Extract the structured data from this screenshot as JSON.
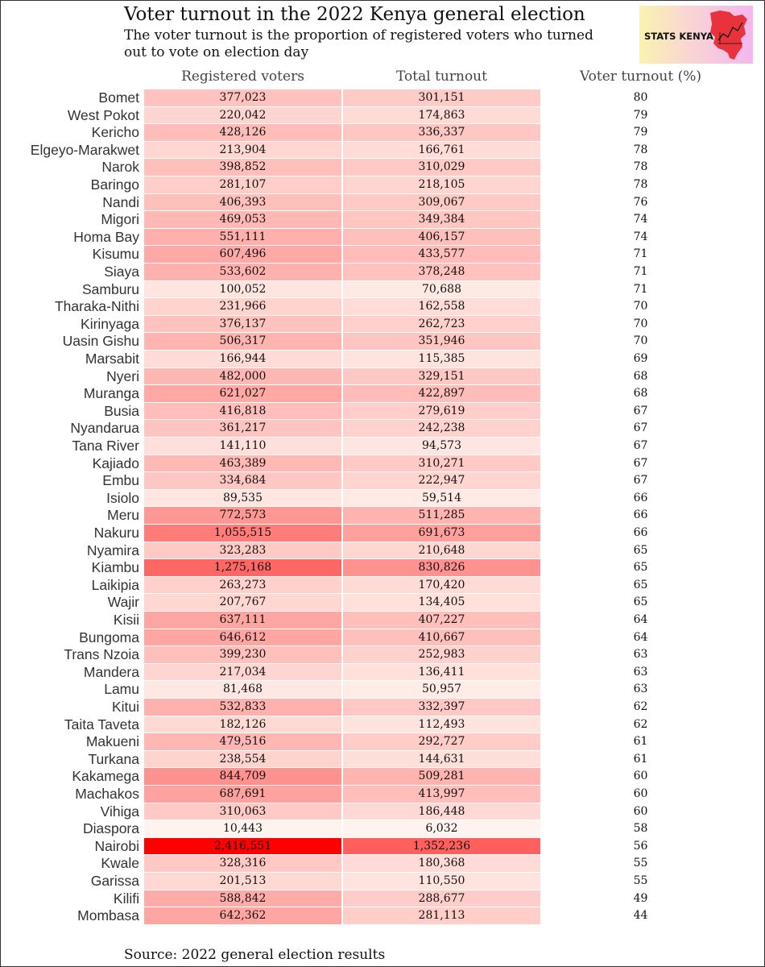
{
  "title": "Voter turnout in the 2022 Kenya general election",
  "subtitle": "The voter turnout is the proportion of registered voters who turned out to vote on election day",
  "logo_text": "STATS KENYA",
  "source": "Source: 2022 general election results",
  "colors": {
    "max": "#ff0000",
    "min": "#fff5f0",
    "logo_map": "#e8323c"
  },
  "chart_data": {
    "type": "table",
    "columns": [
      "Registered voters",
      "Total turnout",
      "Voter turnout (%)"
    ],
    "color_scale": "white-to-red by value, shared across Registered voters and Total turnout",
    "rows": [
      {
        "county": "Bomet",
        "registered": "377,023",
        "turnout": "301,151",
        "pct": "80"
      },
      {
        "county": "West Pokot",
        "registered": "220,042",
        "turnout": "174,863",
        "pct": "79"
      },
      {
        "county": "Kericho",
        "registered": "428,126",
        "turnout": "336,337",
        "pct": "79"
      },
      {
        "county": "Elgeyo-Marakwet",
        "registered": "213,904",
        "turnout": "166,761",
        "pct": "78"
      },
      {
        "county": "Narok",
        "registered": "398,852",
        "turnout": "310,029",
        "pct": "78"
      },
      {
        "county": "Baringo",
        "registered": "281,107",
        "turnout": "218,105",
        "pct": "78"
      },
      {
        "county": "Nandi",
        "registered": "406,393",
        "turnout": "309,067",
        "pct": "76"
      },
      {
        "county": "Migori",
        "registered": "469,053",
        "turnout": "349,384",
        "pct": "74"
      },
      {
        "county": "Homa Bay",
        "registered": "551,111",
        "turnout": "406,157",
        "pct": "74"
      },
      {
        "county": "Kisumu",
        "registered": "607,496",
        "turnout": "433,577",
        "pct": "71"
      },
      {
        "county": "Siaya",
        "registered": "533,602",
        "turnout": "378,248",
        "pct": "71"
      },
      {
        "county": "Samburu",
        "registered": "100,052",
        "turnout": "70,688",
        "pct": "71"
      },
      {
        "county": "Tharaka-Nithi",
        "registered": "231,966",
        "turnout": "162,558",
        "pct": "70"
      },
      {
        "county": "Kirinyaga",
        "registered": "376,137",
        "turnout": "262,723",
        "pct": "70"
      },
      {
        "county": "Uasin Gishu",
        "registered": "506,317",
        "turnout": "351,946",
        "pct": "70"
      },
      {
        "county": "Marsabit",
        "registered": "166,944",
        "turnout": "115,385",
        "pct": "69"
      },
      {
        "county": "Nyeri",
        "registered": "482,000",
        "turnout": "329,151",
        "pct": "68"
      },
      {
        "county": "Muranga",
        "registered": "621,027",
        "turnout": "422,897",
        "pct": "68"
      },
      {
        "county": "Busia",
        "registered": "416,818",
        "turnout": "279,619",
        "pct": "67"
      },
      {
        "county": "Nyandarua",
        "registered": "361,217",
        "turnout": "242,238",
        "pct": "67"
      },
      {
        "county": "Tana River",
        "registered": "141,110",
        "turnout": "94,573",
        "pct": "67"
      },
      {
        "county": "Kajiado",
        "registered": "463,389",
        "turnout": "310,271",
        "pct": "67"
      },
      {
        "county": "Embu",
        "registered": "334,684",
        "turnout": "222,947",
        "pct": "67"
      },
      {
        "county": "Isiolo",
        "registered": "89,535",
        "turnout": "59,514",
        "pct": "66"
      },
      {
        "county": "Meru",
        "registered": "772,573",
        "turnout": "511,285",
        "pct": "66"
      },
      {
        "county": "Nakuru",
        "registered": "1,055,515",
        "turnout": "691,673",
        "pct": "66"
      },
      {
        "county": "Nyamira",
        "registered": "323,283",
        "turnout": "210,648",
        "pct": "65"
      },
      {
        "county": "Kiambu",
        "registered": "1,275,168",
        "turnout": "830,826",
        "pct": "65"
      },
      {
        "county": "Laikipia",
        "registered": "263,273",
        "turnout": "170,420",
        "pct": "65"
      },
      {
        "county": "Wajir",
        "registered": "207,767",
        "turnout": "134,405",
        "pct": "65"
      },
      {
        "county": "Kisii",
        "registered": "637,111",
        "turnout": "407,227",
        "pct": "64"
      },
      {
        "county": "Bungoma",
        "registered": "646,612",
        "turnout": "410,667",
        "pct": "64"
      },
      {
        "county": "Trans Nzoia",
        "registered": "399,230",
        "turnout": "252,983",
        "pct": "63"
      },
      {
        "county": "Mandera",
        "registered": "217,034",
        "turnout": "136,411",
        "pct": "63"
      },
      {
        "county": "Lamu",
        "registered": "81,468",
        "turnout": "50,957",
        "pct": "63"
      },
      {
        "county": "Kitui",
        "registered": "532,833",
        "turnout": "332,397",
        "pct": "62"
      },
      {
        "county": "Taita Taveta",
        "registered": "182,126",
        "turnout": "112,493",
        "pct": "62"
      },
      {
        "county": "Makueni",
        "registered": "479,516",
        "turnout": "292,727",
        "pct": "61"
      },
      {
        "county": "Turkana",
        "registered": "238,554",
        "turnout": "144,631",
        "pct": "61"
      },
      {
        "county": "Kakamega",
        "registered": "844,709",
        "turnout": "509,281",
        "pct": "60"
      },
      {
        "county": "Machakos",
        "registered": "687,691",
        "turnout": "413,997",
        "pct": "60"
      },
      {
        "county": "Vihiga",
        "registered": "310,063",
        "turnout": "186,448",
        "pct": "60"
      },
      {
        "county": "Diaspora",
        "registered": "10,443",
        "turnout": "6,032",
        "pct": "58"
      },
      {
        "county": "Nairobi",
        "registered": "2,416,551",
        "turnout": "1,352,236",
        "pct": "56"
      },
      {
        "county": "Kwale",
        "registered": "328,316",
        "turnout": "180,368",
        "pct": "55"
      },
      {
        "county": "Garissa",
        "registered": "201,513",
        "turnout": "110,550",
        "pct": "55"
      },
      {
        "county": "Kilifi",
        "registered": "588,842",
        "turnout": "288,677",
        "pct": "49"
      },
      {
        "county": "Mombasa",
        "registered": "642,362",
        "turnout": "281,113",
        "pct": "44"
      }
    ]
  }
}
